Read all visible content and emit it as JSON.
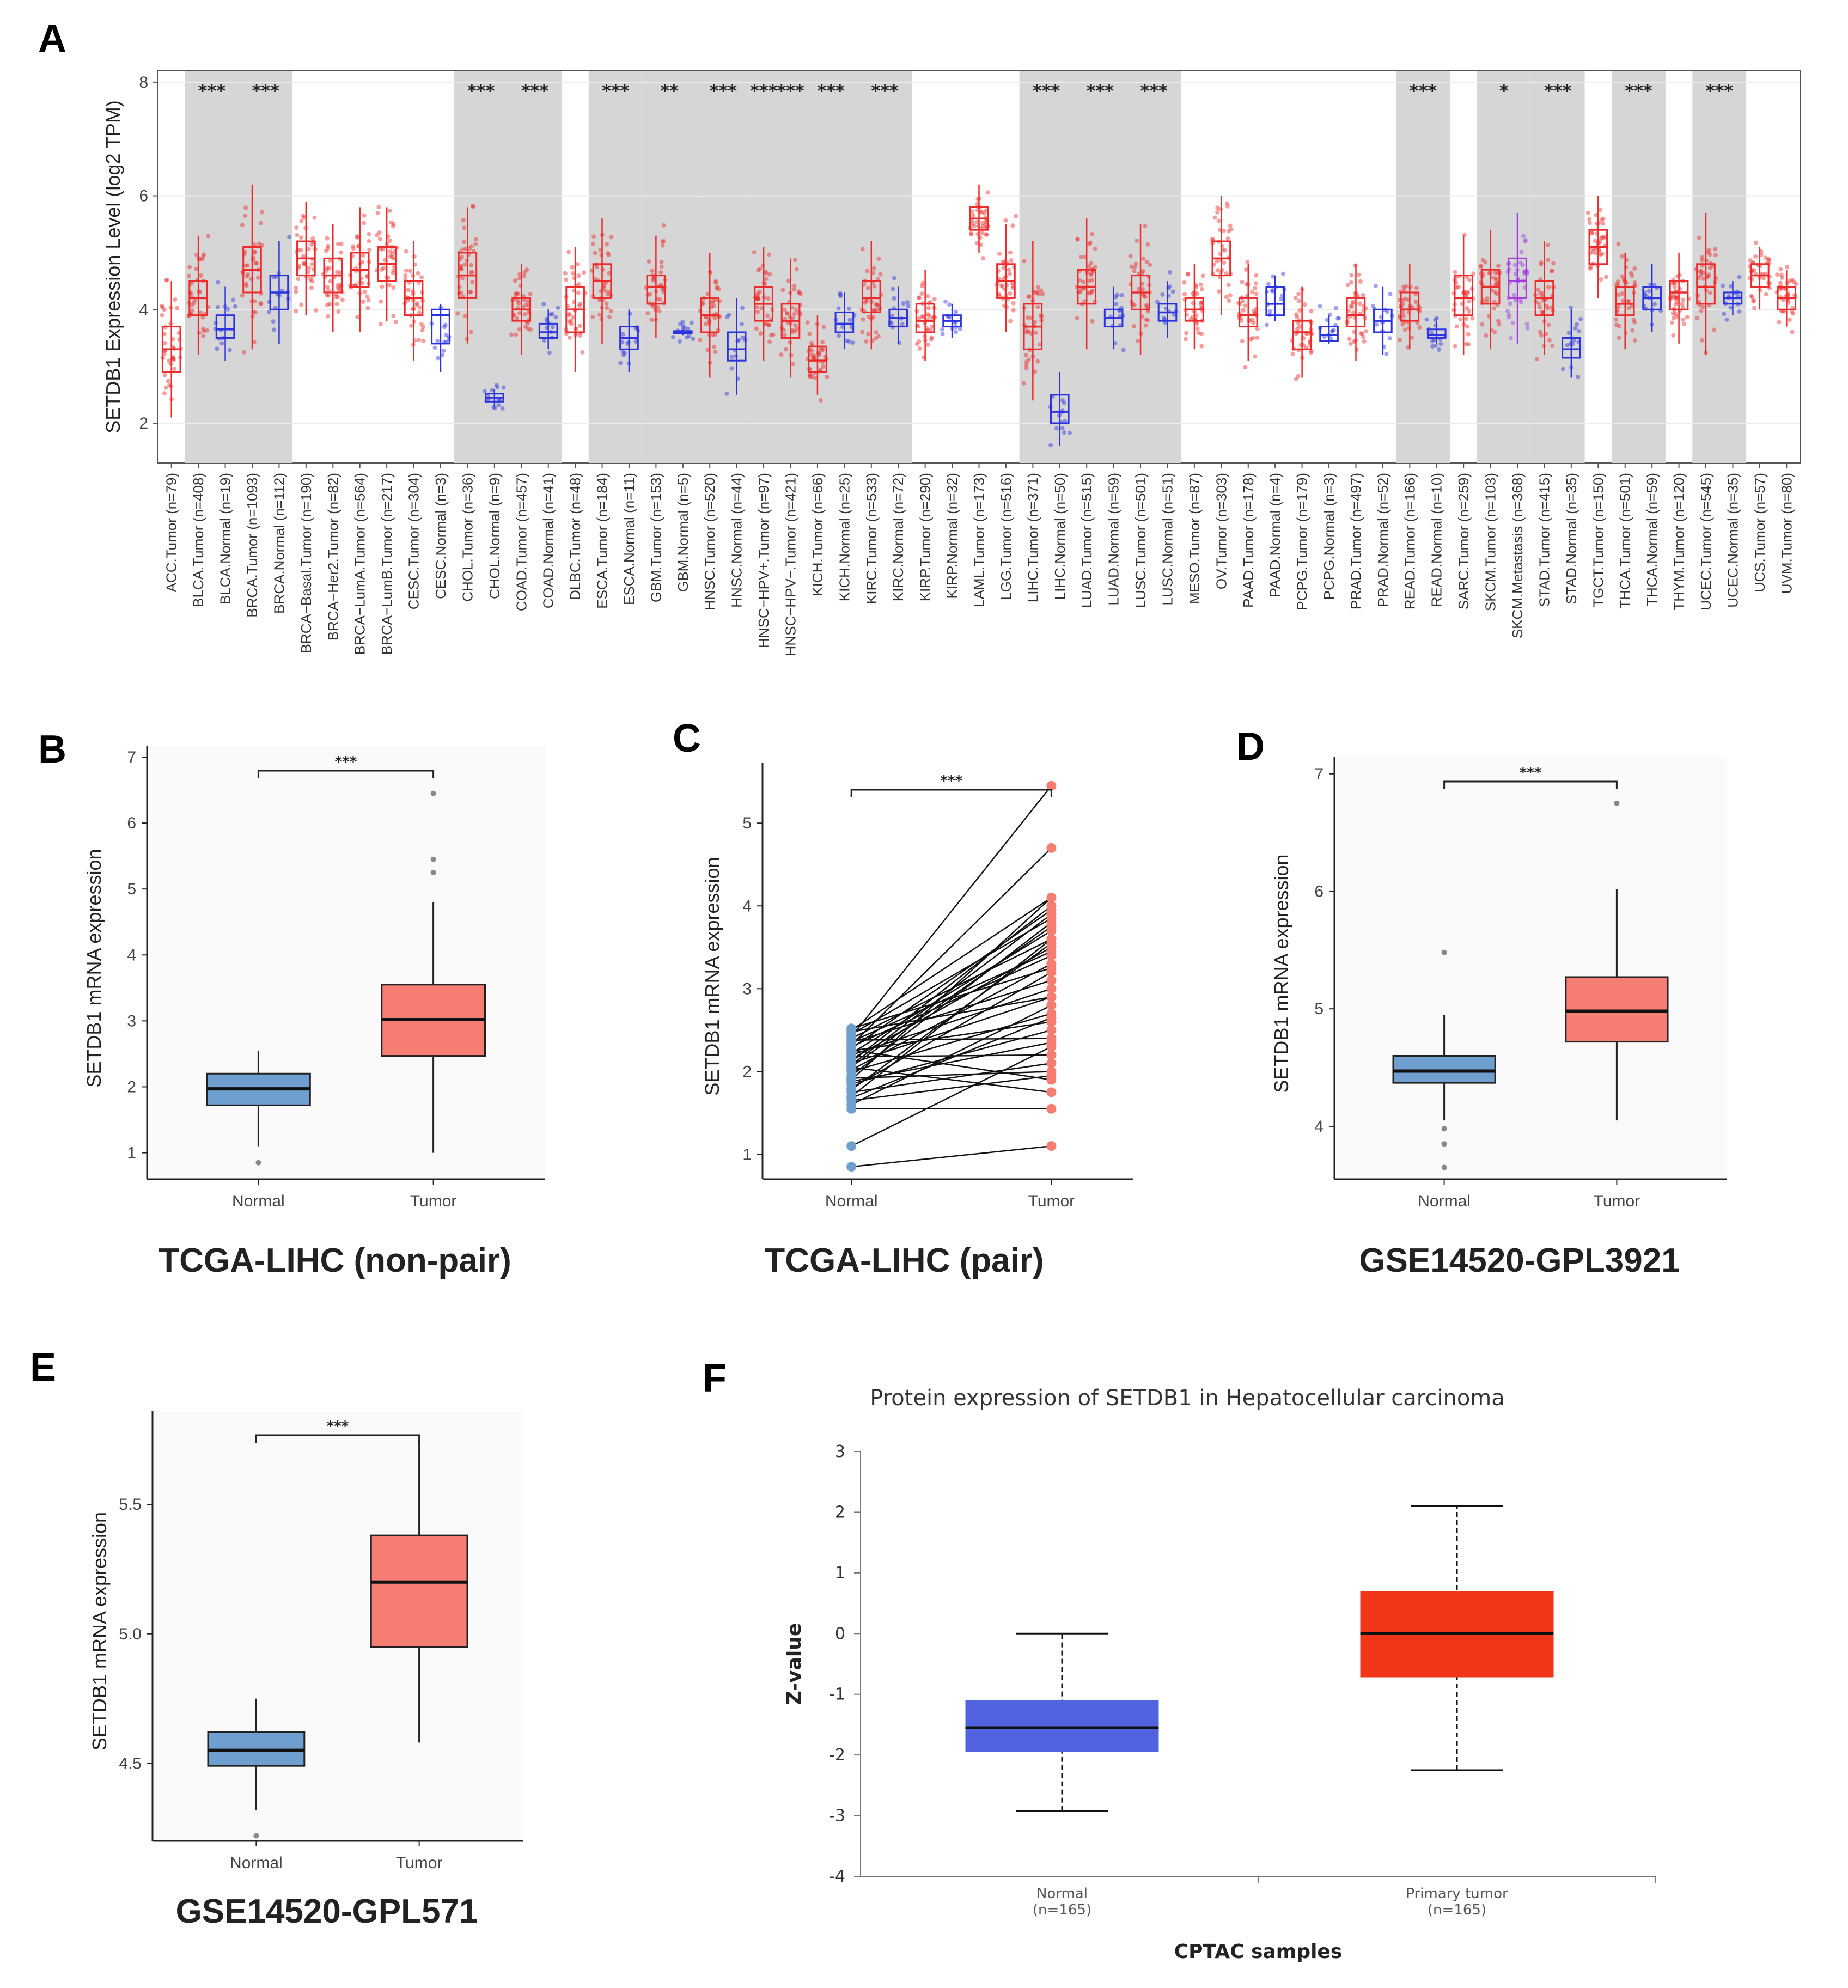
{
  "panels": {
    "a": {
      "letter": "A"
    },
    "b": {
      "letter": "B"
    },
    "c": {
      "letter": "C"
    },
    "d": {
      "letter": "D"
    },
    "e": {
      "letter": "E"
    },
    "f": {
      "letter": "F"
    }
  },
  "colors": {
    "tumor": "#ee2b2b",
    "normal": "#2a33dd",
    "metastasis": "#a23be0",
    "shade": "#d6d6d6",
    "ggNormal": "#6f9fcf",
    "ggTumor": "#f57d72",
    "cptacNormal": "#5263e0",
    "cptacTumor": "#f2361a"
  },
  "chart_data": [
    {
      "id": "A",
      "type": "box",
      "ylabel": "SETDB1 Expression Level (log2 TPM)",
      "ylim": [
        1.3,
        8.2
      ],
      "yticks": [
        2,
        4,
        6,
        8
      ],
      "categories": [
        {
          "label": "ACC.Tumor (n=79)",
          "kind": "tumor",
          "med": 3.3,
          "q1": 2.9,
          "q3": 3.7,
          "lo": 2.1,
          "hi": 4.5,
          "sig": ""
        },
        {
          "label": "BLCA.Tumor (n=408)",
          "kind": "tumor",
          "med": 4.2,
          "q1": 3.9,
          "q3": 4.5,
          "lo": 3.2,
          "hi": 5.3,
          "sig": "***"
        },
        {
          "label": "BLCA.Normal (n=19)",
          "kind": "normal",
          "med": 3.65,
          "q1": 3.5,
          "q3": 3.9,
          "lo": 3.1,
          "hi": 4.4,
          "sig": ""
        },
        {
          "label": "BRCA.Tumor (n=1093)",
          "kind": "tumor",
          "med": 4.7,
          "q1": 4.3,
          "q3": 5.1,
          "lo": 3.3,
          "hi": 6.2,
          "sig": "***"
        },
        {
          "label": "BRCA.Normal (n=112)",
          "kind": "normal",
          "med": 4.3,
          "q1": 4.0,
          "q3": 4.6,
          "lo": 3.4,
          "hi": 5.2,
          "sig": ""
        },
        {
          "label": "BRCA−Basal.Tumor (n=190)",
          "kind": "tumor",
          "med": 4.9,
          "q1": 4.6,
          "q3": 5.2,
          "lo": 3.9,
          "hi": 5.9,
          "sig": ""
        },
        {
          "label": "BRCA−Her2.Tumor (n=82)",
          "kind": "tumor",
          "med": 4.6,
          "q1": 4.3,
          "q3": 4.9,
          "lo": 3.6,
          "hi": 5.5,
          "sig": ""
        },
        {
          "label": "BRCA−LumA.Tumor (n=564)",
          "kind": "tumor",
          "med": 4.7,
          "q1": 4.4,
          "q3": 5.0,
          "lo": 3.6,
          "hi": 5.8,
          "sig": ""
        },
        {
          "label": "BRCA−LumB.Tumor (n=217)",
          "kind": "tumor",
          "med": 4.8,
          "q1": 4.5,
          "q3": 5.1,
          "lo": 3.8,
          "hi": 5.8,
          "sig": ""
        },
        {
          "label": "CESC.Tumor (n=304)",
          "kind": "tumor",
          "med": 4.2,
          "q1": 3.9,
          "q3": 4.5,
          "lo": 3.1,
          "hi": 5.2,
          "sig": ""
        },
        {
          "label": "CESC.Normal (n=3)",
          "kind": "normal",
          "med": 3.9,
          "q1": 3.4,
          "q3": 4.0,
          "lo": 2.9,
          "hi": 4.1,
          "sig": ""
        },
        {
          "label": "CHOL.Tumor (n=36)",
          "kind": "tumor",
          "med": 4.6,
          "q1": 4.2,
          "q3": 5.0,
          "lo": 3.4,
          "hi": 5.8,
          "sig": "***"
        },
        {
          "label": "CHOL.Normal (n=9)",
          "kind": "normal",
          "med": 2.45,
          "q1": 2.38,
          "q3": 2.52,
          "lo": 2.3,
          "hi": 2.6,
          "sig": ""
        },
        {
          "label": "COAD.Tumor (n=457)",
          "kind": "tumor",
          "med": 4.0,
          "q1": 3.8,
          "q3": 4.2,
          "lo": 3.2,
          "hi": 4.8,
          "sig": "***"
        },
        {
          "label": "COAD.Normal (n=41)",
          "kind": "normal",
          "med": 3.6,
          "q1": 3.5,
          "q3": 3.75,
          "lo": 3.3,
          "hi": 4.0,
          "sig": ""
        },
        {
          "label": "DLBC.Tumor (n=48)",
          "kind": "tumor",
          "med": 4.0,
          "q1": 3.6,
          "q3": 4.4,
          "lo": 2.9,
          "hi": 5.1,
          "sig": ""
        },
        {
          "label": "ESCA.Tumor (n=184)",
          "kind": "tumor",
          "med": 4.5,
          "q1": 4.2,
          "q3": 4.8,
          "lo": 3.4,
          "hi": 5.6,
          "sig": "***"
        },
        {
          "label": "ESCA.Normal (n=11)",
          "kind": "normal",
          "med": 3.5,
          "q1": 3.3,
          "q3": 3.7,
          "lo": 2.9,
          "hi": 4.0,
          "sig": ""
        },
        {
          "label": "GBM.Tumor (n=153)",
          "kind": "tumor",
          "med": 4.4,
          "q1": 4.1,
          "q3": 4.6,
          "lo": 3.5,
          "hi": 5.3,
          "sig": "**"
        },
        {
          "label": "GBM.Normal (n=5)",
          "kind": "normal",
          "med": 3.6,
          "q1": 3.58,
          "q3": 3.62,
          "lo": 3.55,
          "hi": 3.65,
          "sig": ""
        },
        {
          "label": "HNSC.Tumor (n=520)",
          "kind": "tumor",
          "med": 3.9,
          "q1": 3.6,
          "q3": 4.2,
          "lo": 2.8,
          "hi": 5.0,
          "sig": "***"
        },
        {
          "label": "HNSC.Normal (n=44)",
          "kind": "normal",
          "med": 3.3,
          "q1": 3.1,
          "q3": 3.6,
          "lo": 2.5,
          "hi": 4.2,
          "sig": ""
        },
        {
          "label": "HNSC−HPV+.Tumor (n=97)",
          "kind": "tumor",
          "med": 4.1,
          "q1": 3.8,
          "q3": 4.4,
          "lo": 3.1,
          "hi": 5.1,
          "sig": "***"
        },
        {
          "label": "HNSC−HPV−.Tumor (n=421)",
          "kind": "tumor",
          "med": 3.8,
          "q1": 3.5,
          "q3": 4.1,
          "lo": 2.8,
          "hi": 4.9,
          "sig": "***"
        },
        {
          "label": "KICH.Tumor (n=66)",
          "kind": "tumor",
          "med": 3.1,
          "q1": 2.9,
          "q3": 3.35,
          "lo": 2.5,
          "hi": 3.9,
          "sig": "***"
        },
        {
          "label": "KICH.Normal (n=25)",
          "kind": "normal",
          "med": 3.75,
          "q1": 3.6,
          "q3": 3.95,
          "lo": 3.3,
          "hi": 4.3,
          "sig": ""
        },
        {
          "label": "KIRC.Tumor (n=533)",
          "kind": "tumor",
          "med": 4.2,
          "q1": 3.95,
          "q3": 4.5,
          "lo": 3.3,
          "hi": 5.2,
          "sig": "***"
        },
        {
          "label": "KIRC.Normal (n=72)",
          "kind": "normal",
          "med": 3.85,
          "q1": 3.7,
          "q3": 4.0,
          "lo": 3.4,
          "hi": 4.4,
          "sig": ""
        },
        {
          "label": "KIRP.Tumor (n=290)",
          "kind": "tumor",
          "med": 3.8,
          "q1": 3.6,
          "q3": 4.1,
          "lo": 3.1,
          "hi": 4.7,
          "sig": ""
        },
        {
          "label": "KIRP.Normal (n=32)",
          "kind": "normal",
          "med": 3.8,
          "q1": 3.7,
          "q3": 3.9,
          "lo": 3.5,
          "hi": 4.1,
          "sig": ""
        },
        {
          "label": "LAML.Tumor (n=173)",
          "kind": "tumor",
          "med": 5.6,
          "q1": 5.4,
          "q3": 5.8,
          "lo": 5.0,
          "hi": 6.2,
          "sig": ""
        },
        {
          "label": "LGG.Tumor (n=516)",
          "kind": "tumor",
          "med": 4.5,
          "q1": 4.2,
          "q3": 4.8,
          "lo": 3.6,
          "hi": 5.5,
          "sig": ""
        },
        {
          "label": "LIHC.Tumor (n=371)",
          "kind": "tumor",
          "med": 3.7,
          "q1": 3.3,
          "q3": 4.1,
          "lo": 2.4,
          "hi": 5.2,
          "sig": "***"
        },
        {
          "label": "LIHC.Normal (n=50)",
          "kind": "normal",
          "med": 2.2,
          "q1": 2.0,
          "q3": 2.5,
          "lo": 1.6,
          "hi": 2.9,
          "sig": ""
        },
        {
          "label": "LUAD.Tumor (n=515)",
          "kind": "tumor",
          "med": 4.4,
          "q1": 4.1,
          "q3": 4.7,
          "lo": 3.3,
          "hi": 5.6,
          "sig": "***"
        },
        {
          "label": "LUAD.Normal (n=59)",
          "kind": "normal",
          "med": 3.85,
          "q1": 3.7,
          "q3": 4.0,
          "lo": 3.3,
          "hi": 4.4,
          "sig": ""
        },
        {
          "label": "LUSC.Tumor (n=501)",
          "kind": "tumor",
          "med": 4.3,
          "q1": 4.0,
          "q3": 4.6,
          "lo": 3.2,
          "hi": 5.5,
          "sig": "***"
        },
        {
          "label": "LUSC.Normal (n=51)",
          "kind": "normal",
          "med": 3.95,
          "q1": 3.8,
          "q3": 4.1,
          "lo": 3.5,
          "hi": 4.5,
          "sig": ""
        },
        {
          "label": "MESO.Tumor (n=87)",
          "kind": "tumor",
          "med": 4.0,
          "q1": 3.8,
          "q3": 4.2,
          "lo": 3.3,
          "hi": 4.8,
          "sig": ""
        },
        {
          "label": "OV.Tumor (n=303)",
          "kind": "tumor",
          "med": 4.9,
          "q1": 4.6,
          "q3": 5.2,
          "lo": 3.9,
          "hi": 6.0,
          "sig": ""
        },
        {
          "label": "PAAD.Tumor (n=178)",
          "kind": "tumor",
          "med": 3.9,
          "q1": 3.7,
          "q3": 4.2,
          "lo": 3.1,
          "hi": 4.8,
          "sig": ""
        },
        {
          "label": "PAAD.Normal (n=4)",
          "kind": "normal",
          "med": 4.1,
          "q1": 3.9,
          "q3": 4.4,
          "lo": 3.8,
          "hi": 4.6,
          "sig": ""
        },
        {
          "label": "PCPG.Tumor (n=179)",
          "kind": "tumor",
          "med": 3.6,
          "q1": 3.3,
          "q3": 3.8,
          "lo": 2.8,
          "hi": 4.4,
          "sig": ""
        },
        {
          "label": "PCPG.Normal (n=3)",
          "kind": "normal",
          "med": 3.55,
          "q1": 3.45,
          "q3": 3.7,
          "lo": 3.4,
          "hi": 3.9,
          "sig": ""
        },
        {
          "label": "PRAD.Tumor (n=497)",
          "kind": "tumor",
          "med": 3.9,
          "q1": 3.7,
          "q3": 4.2,
          "lo": 3.1,
          "hi": 4.8,
          "sig": ""
        },
        {
          "label": "PRAD.Normal (n=52)",
          "kind": "normal",
          "med": 3.8,
          "q1": 3.6,
          "q3": 4.0,
          "lo": 3.2,
          "hi": 4.4,
          "sig": ""
        },
        {
          "label": "READ.Tumor (n=166)",
          "kind": "tumor",
          "med": 4.0,
          "q1": 3.8,
          "q3": 4.3,
          "lo": 3.3,
          "hi": 4.8,
          "sig": "***"
        },
        {
          "label": "READ.Normal (n=10)",
          "kind": "normal",
          "med": 3.55,
          "q1": 3.5,
          "q3": 3.65,
          "lo": 3.4,
          "hi": 3.8,
          "sig": ""
        },
        {
          "label": "SARC.Tumor (n=259)",
          "kind": "tumor",
          "med": 4.2,
          "q1": 3.9,
          "q3": 4.6,
          "lo": 3.2,
          "hi": 5.3,
          "sig": ""
        },
        {
          "label": "SKCM.Tumor (n=103)",
          "kind": "tumor",
          "med": 4.4,
          "q1": 4.1,
          "q3": 4.7,
          "lo": 3.3,
          "hi": 5.4,
          "sig": "*"
        },
        {
          "label": "SKCM.Metastasis (n=368)",
          "kind": "metastasis",
          "med": 4.5,
          "q1": 4.2,
          "q3": 4.9,
          "lo": 3.4,
          "hi": 5.7,
          "sig": ""
        },
        {
          "label": "STAD.Tumor (n=415)",
          "kind": "tumor",
          "med": 4.2,
          "q1": 3.9,
          "q3": 4.5,
          "lo": 3.2,
          "hi": 5.2,
          "sig": "***"
        },
        {
          "label": "STAD.Normal (n=35)",
          "kind": "normal",
          "med": 3.3,
          "q1": 3.15,
          "q3": 3.5,
          "lo": 2.8,
          "hi": 4.0,
          "sig": ""
        },
        {
          "label": "TGCT.Tumor (n=150)",
          "kind": "tumor",
          "med": 5.1,
          "q1": 4.8,
          "q3": 5.4,
          "lo": 4.2,
          "hi": 6.0,
          "sig": ""
        },
        {
          "label": "THCA.Tumor (n=501)",
          "kind": "tumor",
          "med": 4.1,
          "q1": 3.9,
          "q3": 4.4,
          "lo": 3.3,
          "hi": 5.0,
          "sig": "***"
        },
        {
          "label": "THCA.Normal (n=59)",
          "kind": "normal",
          "med": 4.2,
          "q1": 4.0,
          "q3": 4.4,
          "lo": 3.6,
          "hi": 4.8,
          "sig": ""
        },
        {
          "label": "THYM.Tumor (n=120)",
          "kind": "tumor",
          "med": 4.3,
          "q1": 4.0,
          "q3": 4.5,
          "lo": 3.4,
          "hi": 5.0,
          "sig": ""
        },
        {
          "label": "UCEC.Tumor (n=545)",
          "kind": "tumor",
          "med": 4.4,
          "q1": 4.1,
          "q3": 4.8,
          "lo": 3.2,
          "hi": 5.7,
          "sig": "***"
        },
        {
          "label": "UCEC.Normal (n=35)",
          "kind": "normal",
          "med": 4.2,
          "q1": 4.1,
          "q3": 4.3,
          "lo": 3.9,
          "hi": 4.5,
          "sig": ""
        },
        {
          "label": "UCS.Tumor (n=57)",
          "kind": "tumor",
          "med": 4.6,
          "q1": 4.4,
          "q3": 4.8,
          "lo": 4.0,
          "hi": 5.1,
          "sig": ""
        },
        {
          "label": "UVM.Tumor (n=80)",
          "kind": "tumor",
          "med": 4.2,
          "q1": 4.0,
          "q3": 4.4,
          "lo": 3.7,
          "hi": 4.7,
          "sig": ""
        }
      ]
    },
    {
      "id": "B",
      "type": "box",
      "title": "TCGA-LIHC (non-pair)",
      "ylabel": "SETDB1 mRNA expression",
      "ylim": [
        0.6,
        7.0
      ],
      "yticks": [
        1,
        2,
        3,
        4,
        5,
        6,
        7
      ],
      "sig": "***",
      "groups": [
        {
          "name": "Normal",
          "med": 1.97,
          "q1": 1.72,
          "q3": 2.2,
          "lo": 1.1,
          "hi": 2.55,
          "outliers": [
            0.85
          ]
        },
        {
          "name": "Tumor",
          "med": 3.02,
          "q1": 2.47,
          "q3": 3.55,
          "lo": 1.0,
          "hi": 4.8,
          "outliers": [
            5.25,
            5.45,
            6.45
          ]
        }
      ]
    },
    {
      "id": "C",
      "type": "paired",
      "title": "TCGA-LIHC (pair)",
      "ylabel": "SETDB1 mRNA expression",
      "ylim": [
        0.7,
        5.6
      ],
      "yticks": [
        1,
        2,
        3,
        4,
        5
      ],
      "sig": "***",
      "xcats": [
        "Normal",
        "Tumor"
      ],
      "pairs": [
        [
          0.85,
          1.1
        ],
        [
          1.1,
          2.3
        ],
        [
          1.55,
          1.55
        ],
        [
          1.6,
          2.8
        ],
        [
          1.65,
          1.95
        ],
        [
          1.7,
          3.6
        ],
        [
          1.75,
          2.1
        ],
        [
          1.8,
          3.2
        ],
        [
          1.85,
          2.5
        ],
        [
          1.9,
          4.1
        ],
        [
          1.92,
          2.0
        ],
        [
          1.95,
          3.8
        ],
        [
          2.0,
          2.7
        ],
        [
          2.02,
          3.3
        ],
        [
          2.05,
          1.75
        ],
        [
          2.08,
          3.9
        ],
        [
          2.1,
          2.9
        ],
        [
          2.12,
          4.0
        ],
        [
          2.15,
          3.5
        ],
        [
          2.18,
          2.2
        ],
        [
          2.2,
          3.0
        ],
        [
          2.22,
          3.7
        ],
        [
          2.25,
          2.6
        ],
        [
          2.28,
          3.95
        ],
        [
          2.3,
          3.4
        ],
        [
          2.32,
          4.7
        ],
        [
          2.35,
          3.1
        ],
        [
          2.38,
          2.4
        ],
        [
          2.4,
          3.6
        ],
        [
          2.42,
          5.45
        ],
        [
          2.45,
          3.85
        ],
        [
          2.48,
          2.9
        ],
        [
          2.5,
          4.1
        ],
        [
          2.52,
          3.25
        ],
        [
          1.78,
          3.55
        ],
        [
          1.88,
          2.35
        ],
        [
          2.06,
          3.75
        ],
        [
          2.26,
          1.9
        ],
        [
          2.36,
          3.45
        ],
        [
          1.68,
          2.65
        ]
      ]
    },
    {
      "id": "D",
      "type": "box",
      "title": "GSE14520-GPL3921",
      "ylabel": "SETDB1 mRNA expression",
      "ylim": [
        3.55,
        7.05
      ],
      "yticks": [
        4,
        5,
        6,
        7
      ],
      "sig": "***",
      "groups": [
        {
          "name": "Normal",
          "med": 4.47,
          "q1": 4.37,
          "q3": 4.6,
          "lo": 4.05,
          "hi": 4.95,
          "outliers": [
            3.65,
            3.85,
            3.98,
            5.48
          ]
        },
        {
          "name": "Tumor",
          "med": 4.98,
          "q1": 4.72,
          "q3": 5.27,
          "lo": 4.05,
          "hi": 6.02,
          "outliers": [
            6.75
          ]
        }
      ]
    },
    {
      "id": "E",
      "type": "box",
      "title": "GSE14520-GPL571",
      "ylabel": "SETDB1 mRNA expression",
      "ylim": [
        4.2,
        5.82
      ],
      "yticks": [
        4.5,
        5.0,
        5.5
      ],
      "sig": "***",
      "groups": [
        {
          "name": "Normal",
          "med": 4.55,
          "q1": 4.49,
          "q3": 4.62,
          "lo": 4.32,
          "hi": 4.75,
          "outliers": [
            4.22
          ]
        },
        {
          "name": "Tumor",
          "med": 5.2,
          "q1": 4.95,
          "q3": 5.38,
          "lo": 4.58,
          "hi": 5.75,
          "outliers": []
        }
      ]
    },
    {
      "id": "F",
      "type": "box",
      "title": "Protein expression of SETDB1 in Hepatocellular carcinoma",
      "ylabel": "Z-value",
      "xlabel": "CPTAC samples",
      "ylim": [
        -4,
        3
      ],
      "yticks": [
        -4,
        -3,
        -2,
        -1,
        0,
        1,
        2,
        3
      ],
      "groups": [
        {
          "name": "Normal",
          "n": "(n=165)",
          "med": -1.55,
          "q1": -1.95,
          "q3": -1.1,
          "lo": -2.92,
          "hi": 0.0
        },
        {
          "name": "Primary tumor",
          "n": "(n=165)",
          "med": 0.0,
          "q1": -0.72,
          "q3": 0.7,
          "lo": -2.25,
          "hi": 2.1
        }
      ]
    }
  ]
}
